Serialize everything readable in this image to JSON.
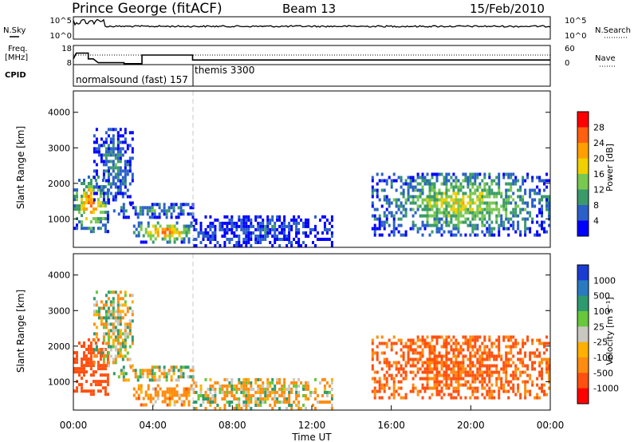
{
  "header": {
    "station": "Prince George (fitACF)",
    "beam": "Beam 13",
    "date": "15/Feb/2010"
  },
  "strip_panels": {
    "nsky": {
      "label": "N.Sky",
      "right_label": "N.Search",
      "left_ticks": [
        "10^5",
        "10^0"
      ],
      "right_ticks": [
        "10^5",
        "10^0"
      ]
    },
    "freq": {
      "label_line1": "Freq.",
      "label_line2": "[MHz]",
      "right_label": "Nave",
      "left_ticks": [
        "18",
        "8"
      ],
      "right_ticks": [
        "60",
        "0"
      ],
      "freq_steps": [
        [
          0.0,
          11
        ],
        [
          0.15,
          14
        ],
        [
          0.75,
          14
        ],
        [
          0.75,
          11
        ],
        [
          1.0,
          11
        ],
        [
          1.25,
          9
        ],
        [
          2.55,
          9
        ],
        [
          2.55,
          8.5
        ],
        [
          3.45,
          8.5
        ],
        [
          3.45,
          13
        ],
        [
          6.0,
          13
        ],
        [
          6.0,
          10.4
        ],
        [
          24.0,
          10.4
        ]
      ]
    },
    "cpid": {
      "label": "CPID",
      "modes": [
        "normalsound (fast) 157",
        "themis 3300"
      ]
    }
  },
  "color_bars": {
    "power": {
      "label": "Power [dB]",
      "ticks": [
        "28",
        "24",
        "20",
        "16",
        "12",
        "8",
        "4"
      ],
      "colors": [
        "#ff0000",
        "#ff6010",
        "#ff9f00",
        "#f0d000",
        "#79c850",
        "#3a9a6a",
        "#2a60c8",
        "#0000ff"
      ]
    },
    "velocity": {
      "label": "Velocity [m s⁻¹]",
      "ticks": [
        "1000",
        "500",
        "100",
        "25",
        "-25",
        "-100",
        "-500",
        "-1000"
      ],
      "colors": [
        "#1a3cd0",
        "#2a7ac0",
        "#2e9a6e",
        "#66c83a",
        "#c8c8c0",
        "#ffb000",
        "#ff8c10",
        "#ff5010",
        "#ff0000"
      ]
    }
  },
  "chart_data": [
    {
      "type": "heatmap",
      "name": "power",
      "ylabel": "Slant Range [km]",
      "y_ticks": [
        "1000",
        "2000",
        "3000",
        "4000"
      ],
      "ylim": [
        200,
        4600
      ],
      "xlim": [
        0,
        24
      ],
      "x_grid_at": 6,
      "regions": [
        {
          "t0": 0.0,
          "t1": 1.7,
          "r0": 600,
          "r1": 2200,
          "core": 26
        },
        {
          "t0": 1.0,
          "t1": 3.0,
          "r0": 1400,
          "r1": 3500,
          "core": 10
        },
        {
          "t0": 2.0,
          "t1": 6.0,
          "r0": 1000,
          "r1": 1400,
          "core": 12
        },
        {
          "t0": 3.0,
          "t1": 6.0,
          "r0": 300,
          "r1": 900,
          "core": 26
        },
        {
          "t0": 6.0,
          "t1": 13.0,
          "r0": 200,
          "r1": 1100,
          "core": 6
        },
        {
          "t0": 15.0,
          "t1": 24.0,
          "r0": 500,
          "r1": 2300,
          "core": 18
        }
      ]
    },
    {
      "type": "heatmap",
      "name": "velocity",
      "ylabel": "Slant Range [km]",
      "y_ticks": [
        "1000",
        "2000",
        "3000",
        "4000"
      ],
      "ylim": [
        200,
        4600
      ],
      "xlim": [
        0,
        24
      ],
      "x_grid_at": 6,
      "x_ticks": [
        "00:00",
        "04:00",
        "08:00",
        "12:00",
        "16:00",
        "20:00",
        "00:00"
      ],
      "xlabel": "Time UT",
      "regions": [
        {
          "t0": 0.0,
          "t1": 1.7,
          "r0": 600,
          "r1": 2200,
          "vel": -400
        },
        {
          "t0": 1.0,
          "t1": 3.0,
          "r0": 1400,
          "r1": 3500,
          "vel": 0
        },
        {
          "t0": 2.0,
          "t1": 6.0,
          "r0": 1000,
          "r1": 1400,
          "vel": 0
        },
        {
          "t0": 3.0,
          "t1": 6.0,
          "r0": 300,
          "r1": 900,
          "vel": -150
        },
        {
          "t0": 6.0,
          "t1": 13.0,
          "r0": 200,
          "r1": 1100,
          "vel": -50
        },
        {
          "t0": 15.0,
          "t1": 24.0,
          "r0": 500,
          "r1": 2300,
          "vel": -300
        }
      ]
    }
  ]
}
